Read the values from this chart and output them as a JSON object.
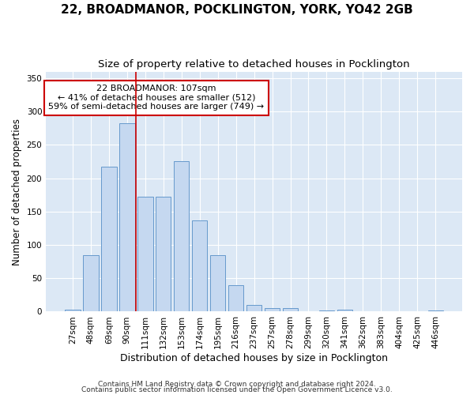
{
  "title": "22, BROADMANOR, POCKLINGTON, YORK, YO42 2GB",
  "subtitle": "Size of property relative to detached houses in Pocklington",
  "xlabel_bottom": "Distribution of detached houses by size in Pocklington",
  "ylabel": "Number of detached properties",
  "footnote1": "Contains HM Land Registry data © Crown copyright and database right 2024.",
  "footnote2": "Contains public sector information licensed under the Open Government Licence v3.0.",
  "bin_labels": [
    "27sqm",
    "48sqm",
    "69sqm",
    "90sqm",
    "111sqm",
    "132sqm",
    "153sqm",
    "174sqm",
    "195sqm",
    "216sqm",
    "237sqm",
    "257sqm",
    "278sqm",
    "299sqm",
    "320sqm",
    "341sqm",
    "362sqm",
    "383sqm",
    "404sqm",
    "425sqm",
    "446sqm"
  ],
  "bar_heights": [
    3,
    85,
    217,
    283,
    172,
    172,
    226,
    137,
    85,
    40,
    10,
    5,
    5,
    0,
    2,
    3,
    0,
    0,
    1,
    0,
    2
  ],
  "bar_color": "#c5d8f0",
  "bar_edge_color": "#6699cc",
  "property_line_index": 4,
  "property_line_color": "#cc0000",
  "annotation_line1": "22 BROADMANOR: 107sqm",
  "annotation_line2": "← 41% of detached houses are smaller (512)",
  "annotation_line3": "59% of semi-detached houses are larger (749) →",
  "annotation_box_color": "#ffffff",
  "annotation_box_edge": "#cc0000",
  "ylim": [
    0,
    360
  ],
  "yticks": [
    0,
    50,
    100,
    150,
    200,
    250,
    300,
    350
  ],
  "fig_bg_color": "#ffffff",
  "plot_bg_color": "#dce8f5",
  "grid_color": "#ffffff",
  "title_fontsize": 11,
  "subtitle_fontsize": 9.5,
  "annotation_fontsize": 8,
  "tick_fontsize": 7.5,
  "ylabel_fontsize": 8.5,
  "xlabel_bottom_fontsize": 9,
  "footnote_fontsize": 6.5
}
